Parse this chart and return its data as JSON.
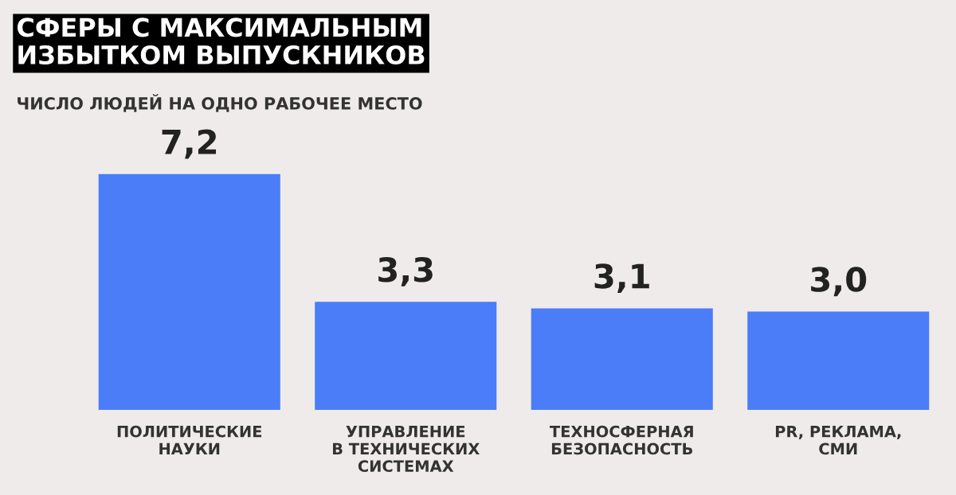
{
  "chart_data": {
    "type": "bar",
    "title": "СФЕРЫ С МАКСИМАЛЬНЫМ\nИЗБЫТКОМ ВЫПУСКНИКОВ",
    "subtitle": "ЧИСЛО ЛЮДЕЙ НА ОДНО РАБОЧЕЕ МЕСТО",
    "categories": [
      "ПОЛИТИЧЕСКИЕ\nНАУКИ",
      "УПРАВЛЕНИЕ\nВ ТЕХНИЧЕСКИХ\nСИСТЕМАХ",
      "ТЕХНОСФЕРНАЯ\nБЕЗОПАСНОСТЬ",
      "PR, РЕКЛАМА,\nСМИ"
    ],
    "values": [
      7.2,
      3.3,
      3.1,
      3.0
    ],
    "value_labels": [
      "7,2",
      "3,3",
      "3,1",
      "3,0"
    ],
    "color": "#4a7df7"
  }
}
